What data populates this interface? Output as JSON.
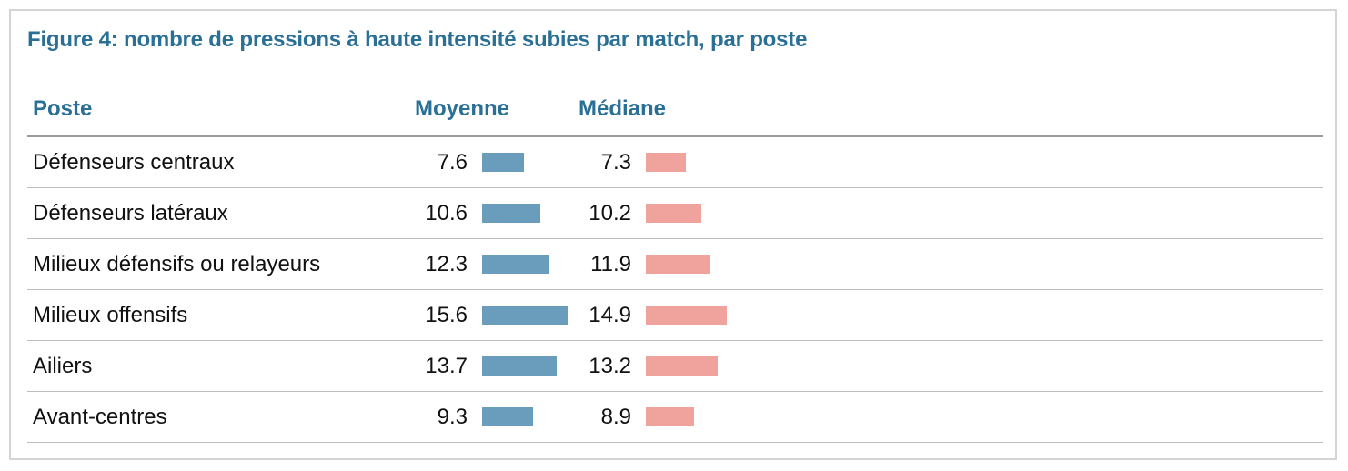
{
  "title": "Figure 4: nombre de pressions à haute intensité subies par match, par poste",
  "columns": {
    "poste": "Poste",
    "moyenne": "Moyenne",
    "mediane": "Médiane"
  },
  "colors": {
    "title": "#2a6f96",
    "moyenne_bar": "#6a9cbb",
    "mediane_bar": "#efa39c"
  },
  "chart_data": {
    "type": "table",
    "title": "Figure 4: nombre de pressions à haute intensité subies par match, par poste",
    "categories": [
      "Défenseurs centraux",
      "Défenseurs latéraux",
      "Milieux défensifs ou relayeurs",
      "Milieux offensifs",
      "Ailiers",
      "Avant-centres"
    ],
    "series": [
      {
        "name": "Moyenne",
        "values": [
          7.6,
          10.6,
          12.3,
          15.6,
          13.7,
          9.3
        ]
      },
      {
        "name": "Médiane",
        "values": [
          7.3,
          10.2,
          11.9,
          14.9,
          13.2,
          8.9
        ]
      }
    ]
  }
}
